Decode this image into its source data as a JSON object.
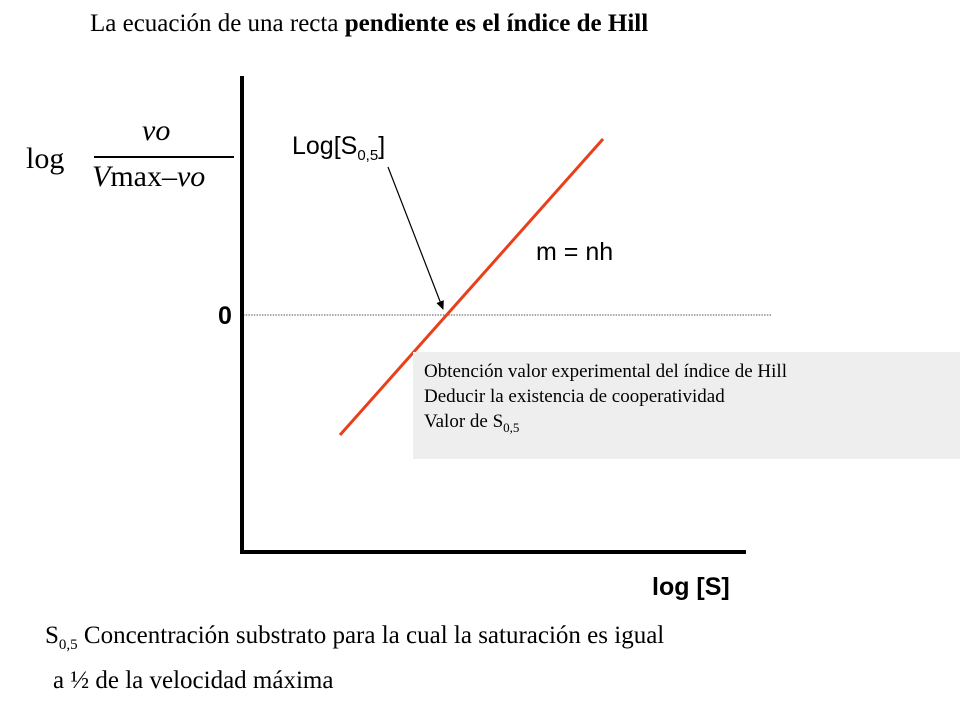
{
  "title": {
    "normal": "La ecuación de una recta",
    "bold": "pendiente es el índice de Hill"
  },
  "y_axis": {
    "log": "log",
    "numerator": "vo",
    "denominator_vmax": "V",
    "denominator_rest": "max",
    "denominator_minus": "–",
    "denominator_vo": "vo"
  },
  "x_axis": {
    "label": "log [S]"
  },
  "zero_label": "0",
  "annotation": {
    "prefix": "Log[S",
    "subscript": "0,5",
    "suffix": "]"
  },
  "slope_label": "m = nh",
  "notes": {
    "line1": "Obtención valor experimental del índice de Hill",
    "line2": "Deducir la existencia de cooperatividad",
    "line3_prefix": "Valor de S",
    "line3_sub": "0,5"
  },
  "footnote": {
    "symbol": "S",
    "subscript": "0,5",
    "line1": " Concentración substrato para la cual la saturación es igual",
    "line2": "a ½ de la velocidad máxima"
  },
  "colors": {
    "line": "#e8401a",
    "axis": "#000000",
    "notes_bg": "#eeeeee"
  }
}
